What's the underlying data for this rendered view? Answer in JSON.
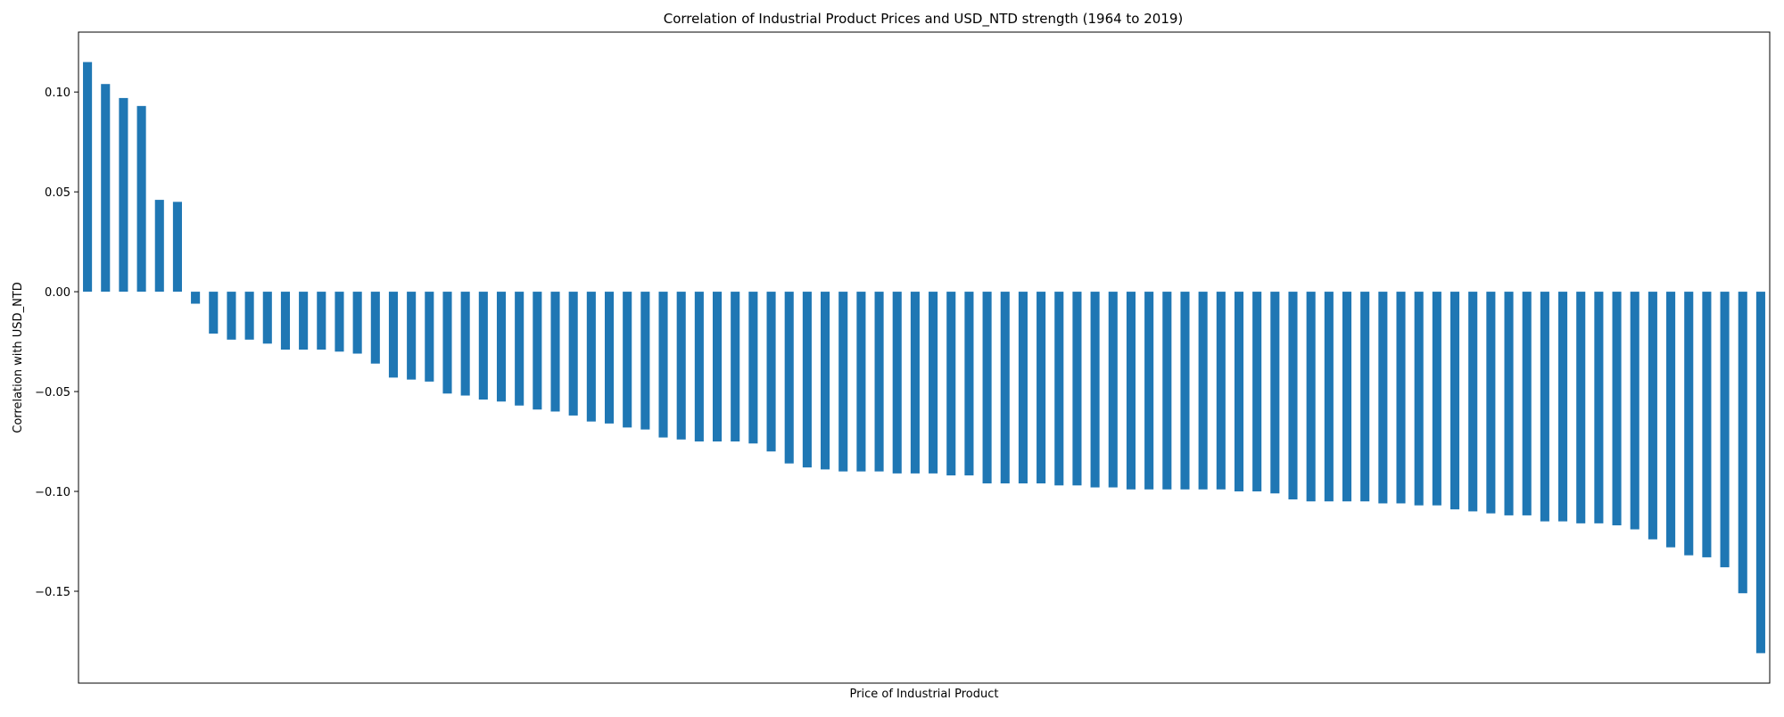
{
  "chart_data": {
    "type": "bar",
    "title": "Correlation of Industrial Product Prices and USD_NTD strength (1964 to 2019)",
    "xlabel": "Price of Industrial Product",
    "ylabel": "Correlation with USD_NTD",
    "ylim": [
      -0.196,
      0.13
    ],
    "yticks": [
      -0.15,
      -0.1,
      -0.05,
      0.0,
      0.05,
      0.1
    ],
    "ytick_labels": [
      "−0.15",
      "−0.10",
      "−0.05",
      "0.00",
      "0.05",
      "0.10"
    ],
    "grid": false,
    "bar_color": "#1f77b4",
    "values": [
      0.115,
      0.104,
      0.097,
      0.093,
      0.046,
      0.045,
      -0.006,
      -0.021,
      -0.024,
      -0.024,
      -0.026,
      -0.029,
      -0.029,
      -0.029,
      -0.03,
      -0.031,
      -0.036,
      -0.043,
      -0.044,
      -0.045,
      -0.051,
      -0.052,
      -0.054,
      -0.055,
      -0.057,
      -0.059,
      -0.06,
      -0.062,
      -0.065,
      -0.066,
      -0.068,
      -0.069,
      -0.073,
      -0.074,
      -0.075,
      -0.075,
      -0.075,
      -0.076,
      -0.08,
      -0.086,
      -0.088,
      -0.089,
      -0.09,
      -0.09,
      -0.09,
      -0.091,
      -0.091,
      -0.091,
      -0.092,
      -0.092,
      -0.096,
      -0.096,
      -0.096,
      -0.096,
      -0.097,
      -0.097,
      -0.098,
      -0.098,
      -0.099,
      -0.099,
      -0.099,
      -0.099,
      -0.099,
      -0.099,
      -0.1,
      -0.1,
      -0.101,
      -0.104,
      -0.105,
      -0.105,
      -0.105,
      -0.105,
      -0.106,
      -0.106,
      -0.107,
      -0.107,
      -0.109,
      -0.11,
      -0.111,
      -0.112,
      -0.112,
      -0.115,
      -0.115,
      -0.116,
      -0.116,
      -0.117,
      -0.119,
      -0.124,
      -0.128,
      -0.132,
      -0.133,
      -0.138,
      -0.151,
      -0.181
    ]
  }
}
